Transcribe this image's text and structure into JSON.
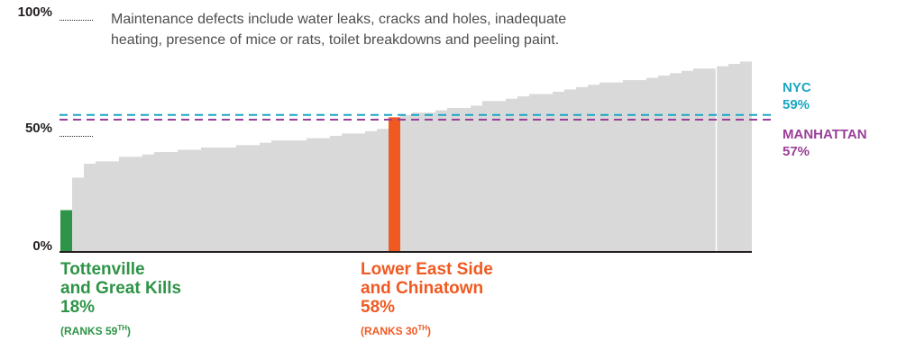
{
  "chart_data": {
    "type": "bar",
    "title": "",
    "annotation": [
      "Maintenance defects include water leaks, cracks and holes, inadequate",
      "heating, presence of mice or rats, toilet breakdowns and peeling paint."
    ],
    "ylim": [
      0,
      100
    ],
    "y_ticks": [
      "100%",
      "50%",
      "0%"
    ],
    "y_tick_values": [
      100,
      50,
      0
    ],
    "colors": {
      "default": "#d9d9d9",
      "tottenville": "#2e9447",
      "les": "#f05a22",
      "nyc": "#1aa6c4",
      "manhattan": "#9a3f98",
      "axis": "#231f20"
    },
    "values": [
      18,
      32,
      38,
      39,
      39,
      41,
      41,
      42,
      43,
      43,
      44,
      44,
      45,
      45,
      45,
      46,
      46,
      47,
      48,
      48,
      48,
      49,
      49,
      50,
      51,
      51,
      52,
      53,
      58,
      59,
      60,
      60,
      61,
      62,
      62,
      63,
      65,
      65,
      66,
      67,
      68,
      68,
      69,
      70,
      71,
      72,
      73,
      73,
      74,
      74,
      75,
      76,
      77,
      78,
      79,
      79,
      80,
      81,
      82
    ],
    "highlight": {
      "0": "tottenville",
      "28": "les"
    },
    "reference_lines": [
      {
        "label": "NYC",
        "value": 59,
        "value_label": "59%",
        "color_key": "nyc"
      },
      {
        "label": "MANHATTAN",
        "value": 57,
        "value_label": "57%",
        "color_key": "manhattan"
      }
    ],
    "callouts": [
      {
        "name": "Tottenville\nand Great Kills",
        "pct": "18%",
        "rank_prefix": "(RANKS 59",
        "rank_sup": "TH",
        "rank_suffix": ")",
        "color_key": "tottenville"
      },
      {
        "name": "Lower East Side\nand Chinatown",
        "pct": "58%",
        "rank_prefix": "(RANKS 30",
        "rank_sup": "TH",
        "rank_suffix": ")",
        "color_key": "les"
      }
    ]
  }
}
